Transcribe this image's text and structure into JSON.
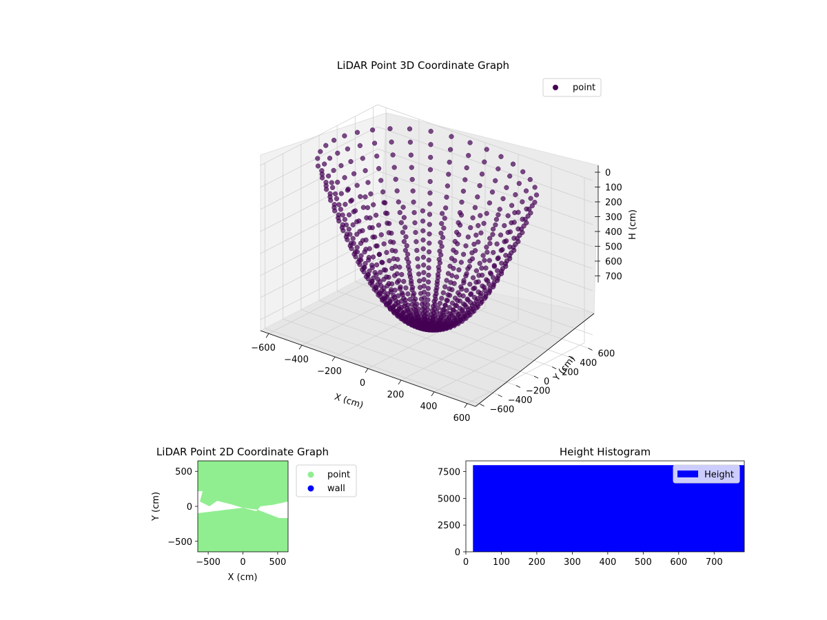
{
  "chart_data": [
    {
      "type": "scatter",
      "title": "LiDAR Point 3D Coordinate Graph",
      "xlabel": "X (cm)",
      "ylabel": "Y (cm)",
      "zlabel": "H (cm)",
      "xticks": [
        "−600",
        "−400",
        "−200",
        "0",
        "200",
        "400",
        "600"
      ],
      "yticks": [
        "−600",
        "−400",
        "−200",
        "0",
        "200",
        "400",
        "600"
      ],
      "zticks": [
        "0",
        "100",
        "200",
        "300",
        "400",
        "500",
        "600",
        "700"
      ],
      "xlim": [
        -650,
        650
      ],
      "ylim": [
        -650,
        650
      ],
      "zlim": [
        0,
        750
      ],
      "z_inverted": true,
      "legend": {
        "position": "top-right",
        "entries": [
          {
            "label": "point",
            "color": "#440154"
          }
        ]
      },
      "color": "#440154",
      "grid": true,
      "note_structure": "bowl of radial point arcs radiating from center, depth up to ~700 cm"
    },
    {
      "type": "scatter",
      "title": "LiDAR Point 2D Coordinate Graph",
      "xlabel": "X (cm)",
      "ylabel": "Y (cm)",
      "xticks": [
        "−500",
        "0",
        "500"
      ],
      "yticks": [
        "−500",
        "0",
        "500"
      ],
      "xlim": [
        -650,
        650
      ],
      "ylim": [
        -650,
        650
      ],
      "legend": {
        "position": "outside-right",
        "entries": [
          {
            "label": "point",
            "color": "#90ee90"
          },
          {
            "label": "wall",
            "color": "#0000ff"
          }
        ]
      }
    },
    {
      "type": "bar",
      "title": "Height Histogram",
      "xlabel": "",
      "ylabel": "",
      "xticks": [
        "0",
        "100",
        "200",
        "300",
        "400",
        "500",
        "600",
        "700"
      ],
      "yticks": [
        "0",
        "2500",
        "5000",
        "7500"
      ],
      "xlim": [
        0,
        785
      ],
      "ylim": [
        0,
        8500
      ],
      "bins": [
        {
          "x0": 20,
          "x1": 785,
          "value": 8100
        }
      ],
      "color": "#0000ff",
      "legend": {
        "position": "top-right",
        "entries": [
          {
            "label": "Height",
            "color": "#0000ff"
          }
        ]
      }
    }
  ]
}
